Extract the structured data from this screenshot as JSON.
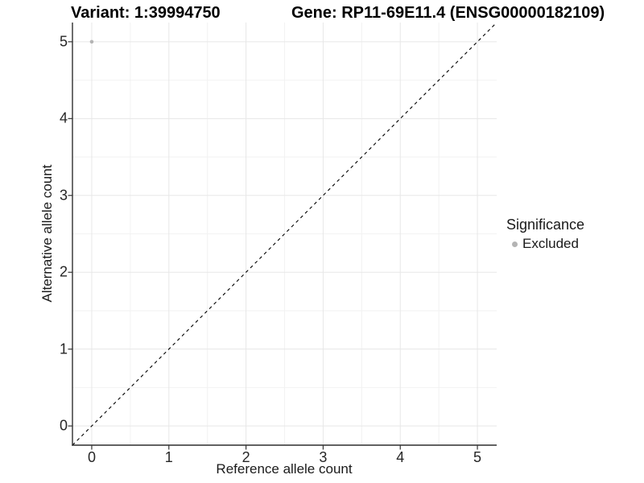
{
  "figure": {
    "title_left": "Variant: 1:39994750",
    "title_right": "Gene: RP11-69E11.4 (ENSG00000182109)"
  },
  "chart_data": {
    "type": "scatter",
    "title_left": "Variant: 1:39994750",
    "title_right": "Gene: RP11-69E11.4 (ENSG00000182109)",
    "xlabel": "Reference allele count",
    "ylabel": "Alternative allele count",
    "xlim": [
      -0.25,
      5.25
    ],
    "ylim": [
      -0.25,
      5.25
    ],
    "x_ticks": [
      0,
      1,
      2,
      3,
      4,
      5
    ],
    "y_ticks": [
      0,
      1,
      2,
      3,
      4,
      5
    ],
    "x_minor_ticks": [
      0.5,
      1.5,
      2.5,
      3.5,
      4.5
    ],
    "y_minor_ticks": [
      0.5,
      1.5,
      2.5,
      3.5,
      4.5
    ],
    "grid": "major and minor, light gray on white",
    "reference_line": {
      "kind": "identity y=x",
      "style": "dashed",
      "color": "#000000"
    },
    "series": [
      {
        "name": "Excluded",
        "color": "#b4b4b4",
        "points": [
          {
            "x": 0,
            "y": 5
          }
        ]
      }
    ],
    "legend": {
      "title": "Significance",
      "position": "right",
      "items": [
        {
          "label": "Excluded",
          "color": "#b4b4b4",
          "marker": "circle"
        }
      ]
    }
  },
  "colors": {
    "background": "#ffffff",
    "grid_major": "#e7e7e7",
    "grid_minor": "#f2f2f2",
    "axis_line": "#2f2f2f",
    "tick_mark": "#333333",
    "text": "#1a1a1a",
    "point": "#b4b4b4"
  }
}
